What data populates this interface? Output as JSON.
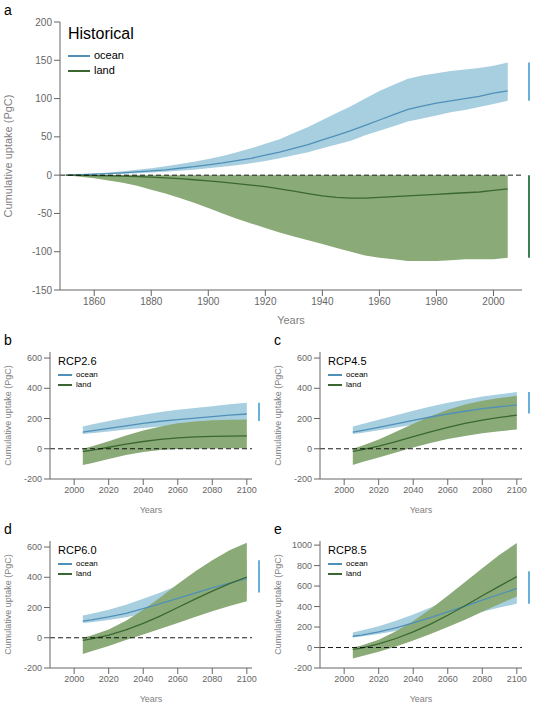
{
  "chart_data": [
    {
      "type": "area",
      "label": "a",
      "title": "Historical",
      "xlabel": "Years",
      "ylabel": "Cumulative uptake (PgC)",
      "grid": false,
      "legend": "upper left",
      "hline": 0,
      "x": [
        1850,
        1855,
        1860,
        1865,
        1870,
        1875,
        1880,
        1885,
        1890,
        1895,
        1900,
        1905,
        1910,
        1915,
        1920,
        1925,
        1930,
        1935,
        1940,
        1945,
        1950,
        1955,
        1960,
        1965,
        1970,
        1975,
        1980,
        1985,
        1990,
        1995,
        2000,
        2005
      ],
      "xlim": [
        1848,
        2010
      ],
      "xticks": [
        1860,
        1880,
        1900,
        1920,
        1940,
        1960,
        1980,
        2000
      ],
      "ylim": [
        -150,
        200
      ],
      "yticks": [
        -150,
        -100,
        -50,
        0,
        50,
        100,
        150,
        200
      ],
      "series": [
        {
          "name": "ocean",
          "color": "#5090b8",
          "band_color": "#a8cfe0",
          "values": [
            0,
            0.5,
            1.2,
            2,
            3,
            4.2,
            5.5,
            7,
            9,
            11,
            13.5,
            16,
            19,
            22,
            26,
            30,
            35,
            40,
            46,
            52,
            58,
            65,
            72,
            79,
            86,
            90,
            94,
            97,
            100,
            103,
            107,
            110
          ],
          "upper": [
            0,
            0.8,
            2,
            3.5,
            5,
            7,
            9,
            11.5,
            14.5,
            17.5,
            21,
            25,
            30,
            35,
            41,
            47,
            55,
            63,
            72,
            81,
            90,
            100,
            110,
            118,
            126,
            130,
            133,
            136,
            138,
            140,
            143,
            147
          ],
          "lower": [
            0,
            0.3,
            0.7,
            1.2,
            1.8,
            2.6,
            3.5,
            4.5,
            5.8,
            7.2,
            9,
            11,
            13,
            15.5,
            18.5,
            22,
            26,
            30,
            35,
            40,
            45,
            52,
            58,
            64,
            70,
            74,
            78,
            82,
            85,
            89,
            93,
            97
          ],
          "error_bar": [
            97,
            147
          ],
          "error_bar_color": "#6ab0d8"
        },
        {
          "name": "land",
          "color": "#3a6830",
          "band_color": "#8aaa78",
          "values": [
            0,
            -0.2,
            -0.5,
            -0.8,
            -1.2,
            -1.8,
            -2.5,
            -3.5,
            -4.5,
            -6,
            -7.5,
            -9,
            -11,
            -13,
            -15,
            -18,
            -21,
            -24,
            -27,
            -29,
            -30,
            -30,
            -29,
            -28,
            -27,
            -26,
            -25,
            -24,
            -23,
            -22,
            -20,
            -18
          ],
          "upper": [
            0,
            0,
            0,
            0,
            0,
            0,
            0,
            0,
            0,
            0,
            0,
            0,
            0,
            0,
            0,
            0,
            0,
            0,
            0,
            0,
            0,
            0,
            0,
            0,
            0,
            0,
            0,
            0,
            0,
            0,
            0,
            0
          ],
          "lower": [
            0,
            -2,
            -4,
            -7,
            -10,
            -14,
            -19,
            -24,
            -30,
            -36,
            -43,
            -50,
            -57,
            -63,
            -69,
            -75,
            -80,
            -85,
            -90,
            -95,
            -100,
            -105,
            -108,
            -110,
            -112,
            -112,
            -112,
            -111,
            -110,
            -110,
            -110,
            -108
          ],
          "error_bar": [
            -108,
            0
          ],
          "error_bar_color": "#3a8050"
        }
      ]
    },
    {
      "type": "area",
      "label": "b",
      "title": "RCP2.6",
      "xlabel": "Years",
      "ylabel": "Cumulative uptake (PgC)",
      "grid": false,
      "legend": "upper left",
      "hline": 0,
      "x": [
        2005,
        2010,
        2020,
        2030,
        2040,
        2050,
        2060,
        2070,
        2080,
        2090,
        2100
      ],
      "xlim": [
        1986,
        2103
      ],
      "xticks": [
        2000,
        2020,
        2040,
        2060,
        2080,
        2100
      ],
      "ylim": [
        -200,
        640
      ],
      "yticks": [
        -200,
        0,
        200,
        400,
        600
      ],
      "series": [
        {
          "name": "ocean",
          "color": "#5090b8",
          "band_color": "#a8cfe0",
          "values": [
            110,
            118,
            135,
            152,
            168,
            182,
            193,
            202,
            212,
            222,
            230
          ],
          "upper": [
            147,
            160,
            183,
            205,
            225,
            243,
            258,
            270,
            282,
            294,
            305
          ],
          "lower": [
            97,
            102,
            115,
            127,
            138,
            148,
            156,
            163,
            170,
            177,
            183
          ],
          "error_bar": [
            183,
            305
          ],
          "error_bar_color": "#6ab0d8"
        },
        {
          "name": "land",
          "color": "#3a6830",
          "band_color": "#8aaa78",
          "values": [
            -18,
            -10,
            10,
            30,
            48,
            62,
            72,
            78,
            82,
            84,
            85
          ],
          "upper": [
            0,
            15,
            50,
            88,
            120,
            148,
            168,
            180,
            188,
            192,
            194
          ],
          "lower": [
            -108,
            -95,
            -68,
            -42,
            -22,
            -8,
            -2,
            0,
            2,
            3,
            4
          ]
        }
      ]
    },
    {
      "type": "area",
      "label": "c",
      "title": "RCP4.5",
      "xlabel": "Years",
      "ylabel": "Cumulative uptake (PgC)",
      "grid": false,
      "legend": "upper left",
      "hline": 0,
      "x": [
        2005,
        2010,
        2020,
        2030,
        2040,
        2050,
        2060,
        2070,
        2080,
        2090,
        2100
      ],
      "xlim": [
        1986,
        2103
      ],
      "xticks": [
        2000,
        2020,
        2040,
        2060,
        2080,
        2100
      ],
      "ylim": [
        -200,
        640
      ],
      "yticks": [
        -200,
        0,
        200,
        400,
        600
      ],
      "series": [
        {
          "name": "ocean",
          "color": "#5090b8",
          "band_color": "#a8cfe0",
          "values": [
            110,
            120,
            142,
            165,
            188,
            210,
            230,
            248,
            265,
            278,
            290
          ],
          "upper": [
            147,
            162,
            192,
            222,
            252,
            280,
            305,
            325,
            345,
            360,
            375
          ],
          "lower": [
            97,
            105,
            122,
            140,
            158,
            175,
            190,
            203,
            215,
            225,
            234
          ],
          "error_bar": [
            234,
            375
          ],
          "error_bar_color": "#6ab0d8"
        },
        {
          "name": "land",
          "color": "#3a6830",
          "band_color": "#8aaa78",
          "values": [
            -18,
            -8,
            18,
            48,
            80,
            112,
            142,
            168,
            190,
            208,
            222
          ],
          "upper": [
            0,
            18,
            62,
            112,
            165,
            215,
            258,
            292,
            318,
            336,
            350
          ],
          "lower": [
            -108,
            -90,
            -58,
            -24,
            8,
            38,
            64,
            85,
            102,
            116,
            128
          ]
        }
      ]
    },
    {
      "type": "area",
      "label": "d",
      "title": "RCP6.0",
      "xlabel": "Years",
      "ylabel": "Cumulative uptake (PgC)",
      "grid": false,
      "legend": "upper left",
      "hline": 0,
      "x": [
        2005,
        2010,
        2020,
        2030,
        2040,
        2050,
        2060,
        2070,
        2080,
        2090,
        2100
      ],
      "xlim": [
        1986,
        2103
      ],
      "xticks": [
        2000,
        2020,
        2040,
        2060,
        2080,
        2100
      ],
      "ylim": [
        -200,
        640
      ],
      "yticks": [
        -200,
        0,
        200,
        400,
        600
      ],
      "series": [
        {
          "name": "ocean",
          "color": "#5090b8",
          "band_color": "#a8cfe0",
          "values": [
            110,
            118,
            138,
            162,
            192,
            225,
            260,
            295,
            330,
            362,
            392
          ],
          "upper": [
            147,
            158,
            185,
            218,
            258,
            300,
            345,
            390,
            435,
            475,
            512
          ],
          "lower": [
            97,
            102,
            118,
            135,
            158,
            182,
            208,
            234,
            258,
            280,
            300
          ],
          "error_bar": [
            300,
            512
          ],
          "error_bar_color": "#6ab0d8"
        },
        {
          "name": "land",
          "color": "#3a6830",
          "band_color": "#8aaa78",
          "values": [
            -18,
            -8,
            18,
            52,
            95,
            145,
            200,
            255,
            308,
            358,
            402
          ],
          "upper": [
            0,
            15,
            55,
            112,
            185,
            268,
            355,
            438,
            512,
            578,
            628
          ],
          "lower": [
            -108,
            -90,
            -55,
            -15,
            22,
            60,
            98,
            138,
            175,
            210,
            242
          ]
        }
      ]
    },
    {
      "type": "area",
      "label": "e",
      "title": "RCP8.5",
      "xlabel": "Years",
      "ylabel": "Cumulative uptake (PgC)",
      "grid": false,
      "legend": "upper left",
      "hline": 0,
      "x": [
        2005,
        2010,
        2020,
        2030,
        2040,
        2050,
        2060,
        2070,
        2080,
        2090,
        2100
      ],
      "xlim": [
        1986,
        2103
      ],
      "xticks": [
        2000,
        2020,
        2040,
        2060,
        2080,
        2100
      ],
      "ylim": [
        -200,
        1040
      ],
      "yticks": [
        -200,
        0,
        200,
        400,
        600,
        800,
        1000
      ],
      "series": [
        {
          "name": "ocean",
          "color": "#5090b8",
          "band_color": "#a8cfe0",
          "values": [
            110,
            122,
            152,
            192,
            240,
            292,
            348,
            405,
            462,
            520,
            575
          ],
          "upper": [
            147,
            165,
            208,
            262,
            322,
            390,
            462,
            535,
            608,
            678,
            745
          ],
          "lower": [
            97,
            108,
            132,
            162,
            196,
            232,
            270,
            310,
            350,
            390,
            428
          ],
          "error_bar": [
            428,
            745
          ],
          "error_bar_color": "#6ab0d8"
        },
        {
          "name": "land",
          "color": "#3a6830",
          "band_color": "#8aaa78",
          "values": [
            -18,
            -5,
            35,
            88,
            152,
            228,
            315,
            408,
            505,
            600,
            692
          ],
          "upper": [
            0,
            20,
            75,
            158,
            260,
            375,
            505,
            640,
            775,
            905,
            1020
          ],
          "lower": [
            -108,
            -85,
            -42,
            10,
            68,
            132,
            200,
            272,
            348,
            425,
            498
          ]
        }
      ]
    }
  ]
}
